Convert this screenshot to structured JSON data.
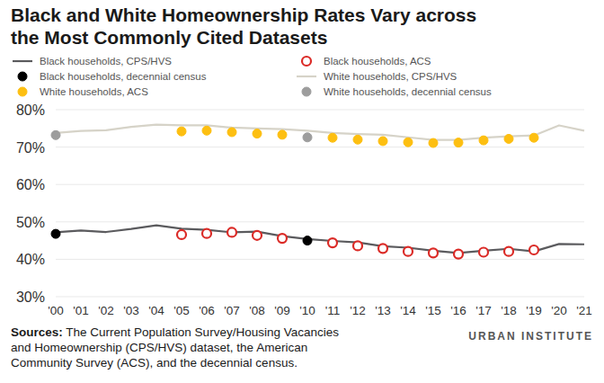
{
  "chart_data": {
    "type": "line",
    "title": "Black and White Homeownership Rates Vary across\nthe Most Commonly Cited Datasets",
    "source": "Sources: The Current Population Survey/Housing Vacancies\nand Homeownership (CPS/HVS) dataset, the American\nCommunity Survey (ACS), and the decennial census.",
    "credit": "URBAN INSTITUTE",
    "legend": "top",
    "grid": true,
    "xlim": [
      2000,
      2021
    ],
    "xticks": [
      {
        "value": 2000,
        "label": "'00"
      },
      {
        "value": 2001,
        "label": "'01"
      },
      {
        "value": 2002,
        "label": "'02"
      },
      {
        "value": 2003,
        "label": "'03"
      },
      {
        "value": 2004,
        "label": "'04"
      },
      {
        "value": 2005,
        "label": "'05"
      },
      {
        "value": 2006,
        "label": "'06"
      },
      {
        "value": 2007,
        "label": "'07"
      },
      {
        "value": 2008,
        "label": "'08"
      },
      {
        "value": 2009,
        "label": "'09"
      },
      {
        "value": 2010,
        "label": "'10"
      },
      {
        "value": 2011,
        "label": "'11"
      },
      {
        "value": 2012,
        "label": "'12"
      },
      {
        "value": 2013,
        "label": "'13"
      },
      {
        "value": 2014,
        "label": "'14"
      },
      {
        "value": 2015,
        "label": "'15"
      },
      {
        "value": 2016,
        "label": "'16"
      },
      {
        "value": 2017,
        "label": "'17"
      },
      {
        "value": 2018,
        "label": "'18"
      },
      {
        "value": 2019,
        "label": "'19"
      },
      {
        "value": 2020,
        "label": "'20"
      },
      {
        "value": 2021,
        "label": "'21"
      }
    ],
    "ylim": [
      30,
      80
    ],
    "yticks": [
      {
        "value": 30,
        "label": "30%"
      },
      {
        "value": 40,
        "label": "40%"
      },
      {
        "value": 50,
        "label": "50%"
      },
      {
        "value": 60,
        "label": "60%"
      },
      {
        "value": 70,
        "label": "70%"
      },
      {
        "value": 80,
        "label": "80%"
      }
    ],
    "series": [
      {
        "name": "Black households, CPS/HVS",
        "type": "line",
        "color": "#5b5b5e",
        "line_style": "solid",
        "x": [
          2000,
          2001,
          2002,
          2003,
          2004,
          2005,
          2006,
          2007,
          2008,
          2009,
          2010,
          2011,
          2012,
          2013,
          2014,
          2015,
          2016,
          2017,
          2018,
          2019,
          2020,
          2021
        ],
        "values": [
          47.2,
          47.7,
          47.3,
          48.1,
          49.1,
          48.2,
          47.9,
          47.2,
          47.4,
          46.2,
          45.4,
          44.9,
          44.5,
          43.5,
          43.1,
          42.3,
          41.7,
          42.3,
          42.8,
          42.1,
          44.1,
          44.0
        ]
      },
      {
        "name": "Black households, ACS",
        "type": "scatter",
        "color": "#db2b27",
        "marker": "open-circle",
        "x": [
          2005,
          2006,
          2007,
          2008,
          2009,
          2011,
          2012,
          2013,
          2014,
          2015,
          2016,
          2017,
          2018,
          2019
        ],
        "values": [
          46.6,
          46.9,
          47.2,
          46.4,
          45.6,
          44.4,
          43.6,
          42.9,
          42.1,
          41.7,
          41.4,
          41.9,
          42.1,
          42.5
        ]
      },
      {
        "name": "Black households, decennial census",
        "type": "scatter",
        "color": "#000000",
        "marker": "circle",
        "x": [
          2000,
          2010
        ],
        "values": [
          46.8,
          45.0
        ]
      },
      {
        "name": "White households, CPS/HVS",
        "type": "line",
        "color": "#d6d3c8",
        "line_style": "solid",
        "x": [
          2000,
          2001,
          2002,
          2003,
          2004,
          2005,
          2006,
          2007,
          2008,
          2009,
          2010,
          2011,
          2012,
          2013,
          2014,
          2015,
          2016,
          2017,
          2018,
          2019,
          2020,
          2021
        ],
        "values": [
          73.8,
          74.3,
          74.5,
          75.4,
          76.0,
          75.8,
          75.8,
          75.2,
          75.0,
          74.8,
          74.4,
          73.8,
          73.5,
          73.3,
          72.6,
          71.9,
          71.9,
          72.5,
          72.9,
          73.1,
          75.8,
          74.4
        ]
      },
      {
        "name": "White households, ACS",
        "type": "scatter",
        "color": "#fdbf11",
        "marker": "circle",
        "x": [
          2005,
          2006,
          2007,
          2008,
          2009,
          2011,
          2012,
          2013,
          2014,
          2015,
          2016,
          2017,
          2018,
          2019
        ],
        "values": [
          74.2,
          74.4,
          74.0,
          73.6,
          73.3,
          72.5,
          72.0,
          71.6,
          71.3,
          71.1,
          71.2,
          71.8,
          72.2,
          72.5
        ]
      },
      {
        "name": "White households, decennial census",
        "type": "scatter",
        "color": "#9d9d9d",
        "marker": "circle",
        "x": [
          2000,
          2010
        ],
        "values": [
          73.2,
          72.6
        ]
      }
    ]
  }
}
